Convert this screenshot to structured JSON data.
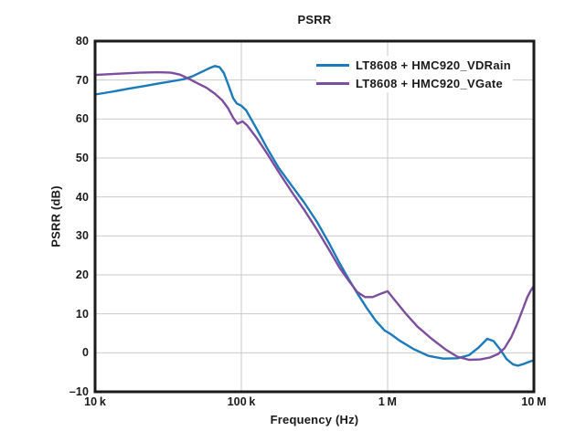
{
  "figure": {
    "background": "#ffffff",
    "text_color": "#1a1a1a",
    "grid_color": "#c9c9c9",
    "frame_color": "#1a1a1a"
  },
  "chart_data": {
    "type": "line",
    "title": "PSRR",
    "xlabel": "Frequency (Hz)",
    "ylabel": "PSRR (dB)",
    "x_scale": "log",
    "xlim": [
      10000,
      10000000
    ],
    "ylim": [
      -10,
      80
    ],
    "grid": true,
    "legend_position": "top-right-inside",
    "x_ticks": [
      {
        "value": 10000,
        "label": "10 k"
      },
      {
        "value": 100000,
        "label": "100 k"
      },
      {
        "value": 1000000,
        "label": "1 M"
      },
      {
        "value": 10000000,
        "label": "10 M"
      }
    ],
    "y_ticks": [
      {
        "value": 80,
        "label": "80"
      },
      {
        "value": 70,
        "label": "70"
      },
      {
        "value": 60,
        "label": "60"
      },
      {
        "value": 50,
        "label": "50"
      },
      {
        "value": 40,
        "label": "40"
      },
      {
        "value": 30,
        "label": "30"
      },
      {
        "value": 20,
        "label": "20"
      },
      {
        "value": 10,
        "label": "10"
      },
      {
        "value": 0,
        "label": "0"
      },
      {
        "value": -10,
        "label": "–10"
      }
    ],
    "series": [
      {
        "name": "LT8608 + HMC920_VDRain",
        "color": "#1a7abc",
        "points": [
          [
            10000,
            66.3
          ],
          [
            13000,
            67.0
          ],
          [
            17000,
            67.8
          ],
          [
            22000,
            68.5
          ],
          [
            28000,
            69.2
          ],
          [
            35000,
            69.8
          ],
          [
            40000,
            70.2
          ],
          [
            46000,
            70.9
          ],
          [
            53000,
            72.0
          ],
          [
            60000,
            73.0
          ],
          [
            66000,
            73.6
          ],
          [
            71000,
            73.3
          ],
          [
            76000,
            71.8
          ],
          [
            82000,
            68.5
          ],
          [
            88000,
            65.3
          ],
          [
            93000,
            64.0
          ],
          [
            100000,
            63.4
          ],
          [
            108000,
            62.2
          ],
          [
            125000,
            58.0
          ],
          [
            150000,
            52.5
          ],
          [
            180000,
            47.5
          ],
          [
            220000,
            43.0
          ],
          [
            270000,
            38.5
          ],
          [
            330000,
            33.5
          ],
          [
            400000,
            28.0
          ],
          [
            470000,
            23.0
          ],
          [
            540000,
            19.0
          ],
          [
            620000,
            15.3
          ],
          [
            720000,
            11.5
          ],
          [
            830000,
            8.2
          ],
          [
            950000,
            5.8
          ],
          [
            1050000,
            4.8
          ],
          [
            1200000,
            3.2
          ],
          [
            1500000,
            1.0
          ],
          [
            1900000,
            -0.8
          ],
          [
            2400000,
            -1.5
          ],
          [
            3000000,
            -1.4
          ],
          [
            3600000,
            -0.6
          ],
          [
            4200000,
            1.4
          ],
          [
            4800000,
            3.6
          ],
          [
            5300000,
            3.0
          ],
          [
            5900000,
            0.8
          ],
          [
            6500000,
            -1.6
          ],
          [
            7200000,
            -3.0
          ],
          [
            7800000,
            -3.3
          ],
          [
            8600000,
            -2.8
          ],
          [
            9300000,
            -2.3
          ],
          [
            10000000,
            -1.9
          ]
        ]
      },
      {
        "name": "LT8608 + HMC920_VGate",
        "color": "#7d4d9e",
        "points": [
          [
            10000,
            71.3
          ],
          [
            14000,
            71.6
          ],
          [
            20000,
            71.9
          ],
          [
            27000,
            72.0
          ],
          [
            33000,
            71.9
          ],
          [
            38000,
            71.4
          ],
          [
            44000,
            70.3
          ],
          [
            50000,
            69.2
          ],
          [
            58000,
            68.0
          ],
          [
            66000,
            66.5
          ],
          [
            74000,
            64.8
          ],
          [
            81000,
            62.8
          ],
          [
            88000,
            60.3
          ],
          [
            94000,
            58.8
          ],
          [
            102000,
            59.4
          ],
          [
            110000,
            58.3
          ],
          [
            128000,
            55.0
          ],
          [
            152000,
            50.8
          ],
          [
            183000,
            46.0
          ],
          [
            222000,
            41.2
          ],
          [
            270000,
            36.6
          ],
          [
            330000,
            31.5
          ],
          [
            400000,
            26.3
          ],
          [
            470000,
            21.8
          ],
          [
            540000,
            18.6
          ],
          [
            620000,
            15.6
          ],
          [
            700000,
            14.3
          ],
          [
            790000,
            14.3
          ],
          [
            890000,
            15.1
          ],
          [
            1000000,
            15.8
          ],
          [
            1120000,
            13.5
          ],
          [
            1320000,
            10.2
          ],
          [
            1600000,
            6.7
          ],
          [
            2000000,
            3.6
          ],
          [
            2500000,
            0.8
          ],
          [
            3000000,
            -1.0
          ],
          [
            3600000,
            -1.8
          ],
          [
            4300000,
            -1.7
          ],
          [
            5000000,
            -1.2
          ],
          [
            5700000,
            -0.3
          ],
          [
            6300000,
            1.2
          ],
          [
            7000000,
            4.0
          ],
          [
            7700000,
            7.5
          ],
          [
            8400000,
            11.2
          ],
          [
            9000000,
            14.2
          ],
          [
            9500000,
            15.9
          ],
          [
            10000000,
            17.2
          ]
        ]
      }
    ]
  }
}
